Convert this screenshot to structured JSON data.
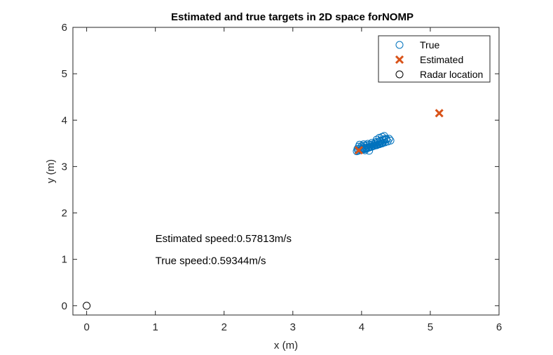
{
  "chart_data": {
    "type": "scatter",
    "title": "Estimated and true targets in 2D space forNOMP",
    "xlabel": "x (m)",
    "ylabel": "y (m)",
    "xlim": [
      -0.2,
      6
    ],
    "ylim": [
      -0.2,
      6
    ],
    "xticks": [
      "0",
      "1",
      "2",
      "3",
      "4",
      "5",
      "6"
    ],
    "yticks": [
      "0",
      "1",
      "2",
      "3",
      "4",
      "5",
      "6"
    ],
    "grid": false,
    "legend_position": "top-right",
    "series": [
      {
        "name": "True",
        "marker": "circle",
        "color": "#0072BD",
        "x": [
          3.93,
          3.95,
          3.97,
          3.99,
          4.01,
          4.03,
          4.05,
          4.07,
          4.09,
          4.11,
          4.13,
          4.15,
          4.17,
          4.19,
          4.21,
          4.23,
          4.25,
          4.27,
          4.29,
          4.31,
          3.94,
          3.98,
          4.02,
          4.06,
          4.1,
          4.14,
          4.18,
          4.22,
          4.26,
          4.3,
          4.34,
          4.38,
          4.42,
          3.96,
          4.0,
          4.04,
          4.08,
          4.12,
          4.16,
          4.2,
          4.24,
          4.28,
          4.32,
          4.36,
          4.4,
          3.97,
          4.03,
          4.09,
          4.15,
          4.21,
          4.27,
          4.33,
          4.22,
          4.26,
          4.3,
          4.33,
          4.36,
          4.0,
          4.05,
          4.11
        ],
        "y": [
          3.33,
          3.34,
          3.35,
          3.36,
          3.37,
          3.37,
          3.38,
          3.39,
          3.4,
          3.41,
          3.42,
          3.43,
          3.44,
          3.45,
          3.46,
          3.47,
          3.48,
          3.49,
          3.5,
          3.51,
          3.38,
          3.39,
          3.4,
          3.41,
          3.42,
          3.43,
          3.45,
          3.46,
          3.48,
          3.5,
          3.52,
          3.54,
          3.56,
          3.43,
          3.44,
          3.45,
          3.46,
          3.47,
          3.48,
          3.5,
          3.52,
          3.54,
          3.56,
          3.58,
          3.6,
          3.47,
          3.48,
          3.49,
          3.51,
          3.53,
          3.56,
          3.59,
          3.58,
          3.62,
          3.64,
          3.66,
          3.6,
          3.36,
          3.35,
          3.34
        ]
      },
      {
        "name": "Estimated",
        "marker": "x",
        "color": "#D95319",
        "x": [
          3.96,
          5.13
        ],
        "y": [
          3.35,
          4.15
        ]
      },
      {
        "name": "Radar location",
        "marker": "circle",
        "color": "#000000",
        "x": [
          0
        ],
        "y": [
          0
        ]
      }
    ],
    "annotations": [
      {
        "text": "Estimated speed:0.57813m/s",
        "x": 1.0,
        "y": 1.45
      },
      {
        "text": "True speed:0.59344m/s",
        "x": 1.0,
        "y": 0.97
      }
    ]
  }
}
